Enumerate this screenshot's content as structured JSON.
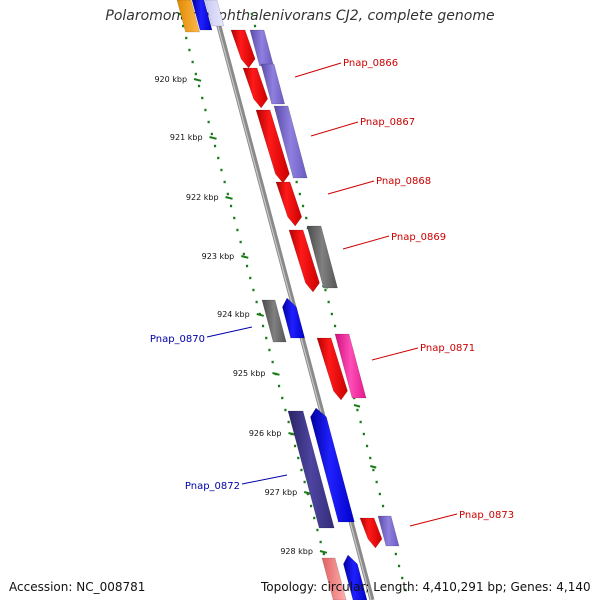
{
  "title": "Polaromonas naphthalenivorans CJ2, complete genome",
  "accession": "Accession: NC_008781",
  "summary": "Topology: circular; Length: 4,410,291 bp; Genes: 4,140",
  "ticks": [
    "920 kbp",
    "921 kbp",
    "922 kbp",
    "923 kbp",
    "924 kbp",
    "925 kbp",
    "926 kbp",
    "927 kbp",
    "928 kbp"
  ],
  "genes": [
    {
      "id": "Pnap_0866",
      "strand": "forward"
    },
    {
      "id": "Pnap_0867",
      "strand": "forward"
    },
    {
      "id": "Pnap_0868",
      "strand": "forward"
    },
    {
      "id": "Pnap_0869",
      "strand": "forward"
    },
    {
      "id": "Pnap_0870",
      "strand": "reverse"
    },
    {
      "id": "Pnap_0871",
      "strand": "forward"
    },
    {
      "id": "Pnap_0872",
      "strand": "reverse"
    },
    {
      "id": "Pnap_0873",
      "strand": "forward"
    }
  ],
  "colors": {
    "forward_label": "#cc0000",
    "reverse_label": "#0000aa",
    "cds_red": "#ff0000",
    "cds_blue": "#0000ff",
    "feature_purple": "#7766cc",
    "feature_gray": "#666666",
    "feature_pink": "#ff2aa0",
    "feature_navy": "#3d3580",
    "backbone": "#888888",
    "tick_green": "#1a7a1a"
  }
}
